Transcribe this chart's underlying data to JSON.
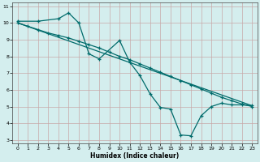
{
  "xlabel": "Humidex (Indice chaleur)",
  "bg_color": "#d4eeee",
  "grid_color": "#b8d8d8",
  "line_color": "#006b6b",
  "xlim": [
    -0.5,
    23.5
  ],
  "ylim": [
    2.8,
    11.2
  ],
  "xticks": [
    0,
    1,
    2,
    3,
    4,
    5,
    6,
    7,
    8,
    9,
    10,
    11,
    12,
    13,
    14,
    15,
    16,
    17,
    18,
    19,
    20,
    21,
    22,
    23
  ],
  "yticks": [
    3,
    4,
    5,
    6,
    7,
    8,
    9,
    10,
    11
  ],
  "line1_x": [
    0,
    2,
    4,
    5,
    6,
    7,
    8,
    10,
    11,
    12,
    13,
    14,
    15,
    16,
    17,
    18,
    19,
    20,
    21,
    22,
    23
  ],
  "line1_y": [
    10.1,
    10.1,
    10.25,
    10.6,
    10.0,
    8.15,
    7.85,
    8.95,
    7.65,
    6.85,
    5.75,
    4.95,
    4.85,
    3.3,
    3.25,
    4.45,
    5.0,
    5.2,
    5.1,
    5.1,
    5.05
  ],
  "line2_x": [
    0,
    1,
    2,
    3,
    4,
    5,
    6,
    7,
    8,
    9,
    10,
    11,
    12,
    13,
    14,
    15,
    16,
    17,
    18,
    19,
    20,
    21,
    22,
    23
  ],
  "line2_y": [
    10.0,
    9.8,
    9.6,
    9.4,
    9.25,
    9.1,
    8.9,
    8.7,
    8.5,
    8.25,
    8.0,
    7.8,
    7.55,
    7.3,
    7.05,
    6.8,
    6.55,
    6.3,
    6.05,
    5.8,
    5.55,
    5.35,
    5.15,
    5.0
  ],
  "line3_x": [
    0,
    23
  ],
  "line3_y": [
    10.0,
    5.05
  ]
}
